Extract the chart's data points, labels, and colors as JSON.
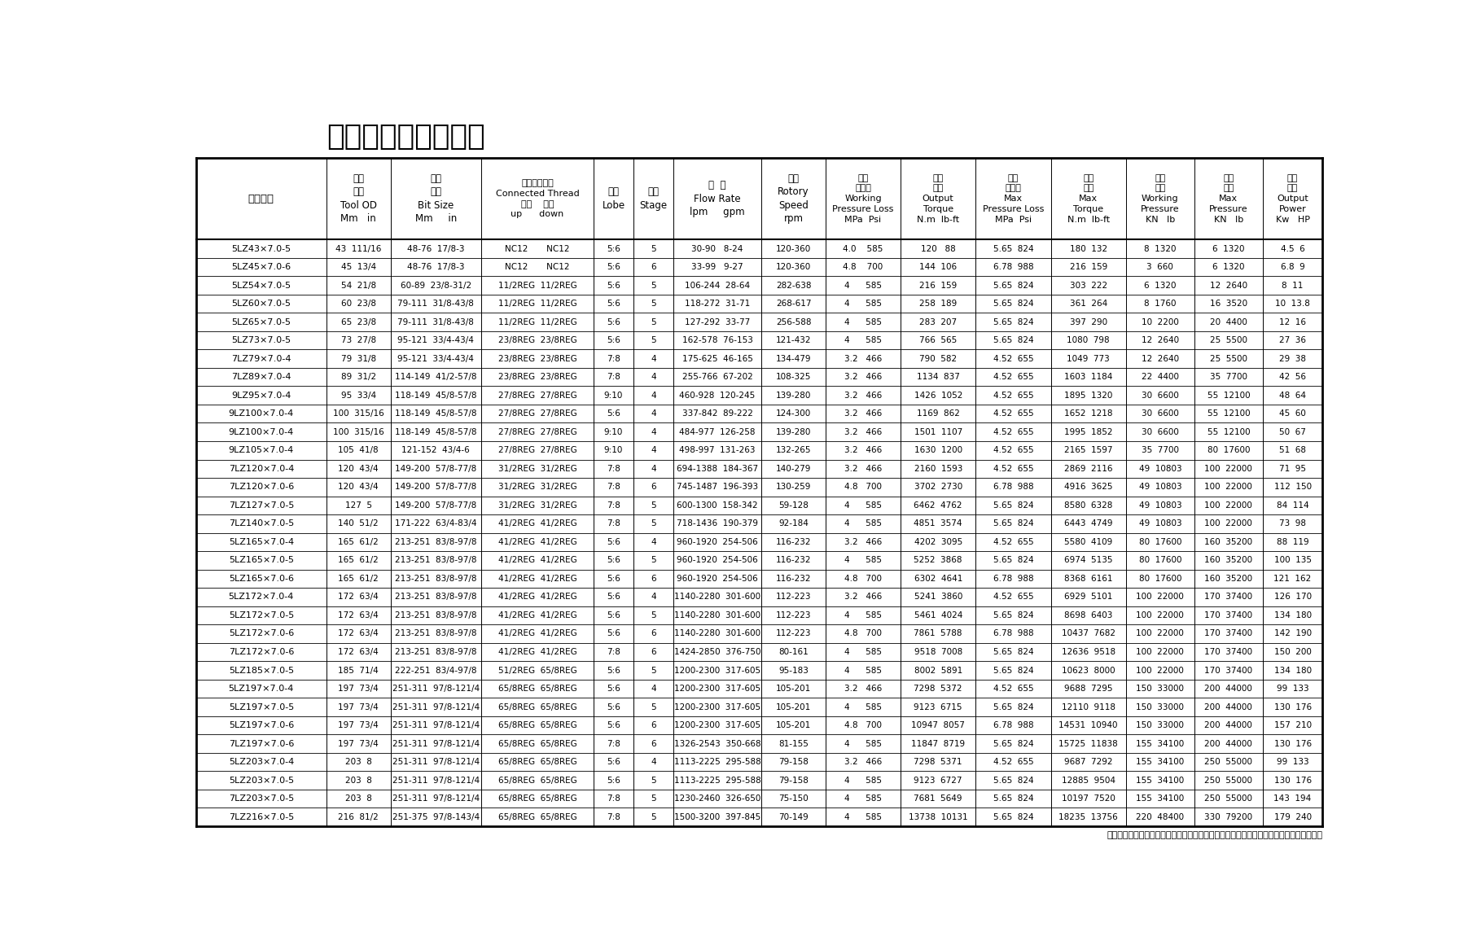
{
  "title": "螺杆钻具技术参数表",
  "footer": "注：此说明书最终解释权归盐城市荣嘉石油机械制造有限公司所有，如有变动以实物为准。",
  "col_props": [
    1.18,
    0.58,
    0.82,
    1.02,
    0.36,
    0.36,
    0.8,
    0.58,
    0.68,
    0.68,
    0.68,
    0.68,
    0.62,
    0.62,
    0.54
  ],
  "header_lines": [
    [
      "钻具型号",
      "外径\n尺寸\nTool OD\nMm   in",
      "钻头\n尺寸\nBit Size\nMm     in",
      "两端连接螺纹\nConnected Thread\n上端    下端\nup      down",
      "头数\nLobe",
      "级数\nStage",
      "排  量\nFlow Rate\nlpm     gpm",
      "转速\nRotory\nSpeed\nrpm",
      "工作\n压力降\nWorking\nPressure Loss\nMPa  Psi",
      "输出\n扭矩\nOutput\nTorque\nN.m  lb-ft",
      "最大\n压力降\nMax\nPressure Loss\nMPa  Psi",
      "最大\n扭矩\nMax\nTorque\nN.m  lb-ft",
      "工作\n钻压\nWorking\nPressure\nKN   lb",
      "最大\n钻压\nMax\nPressure\nKN   lb",
      "输出\n功率\nOutput\nPower\nKw   HP"
    ]
  ],
  "rows": [
    [
      "5LZ43×7.0-5",
      "43  111/16",
      "48-76  17/8-3",
      "NC12       NC12",
      "5:6",
      "5",
      "30-90   8-24",
      "120-360",
      "4.0    585",
      "120   88",
      "5.65  824",
      "180  132",
      "8  1320",
      "6  1320",
      "4.5  6"
    ],
    [
      "5LZ45×7.0-6",
      "45  13/4",
      "48-76  17/8-3",
      "NC12       NC12",
      "5:6",
      "6",
      "33-99   9-27",
      "120-360",
      "4.8    700",
      "144  106",
      "6.78  988",
      "216  159",
      "3  660",
      "6  1320",
      "6.8  9"
    ],
    [
      "5LZ54×7.0-5",
      "54  21/8",
      "60-89  23/8-31/2",
      "11/2REG  11/2REG",
      "5:6",
      "5",
      "106-244  28-64",
      "282-638",
      "4      585",
      "216  159",
      "5.65  824",
      "303  222",
      "6  1320",
      "12  2640",
      "8  11"
    ],
    [
      "5LZ60×7.0-5",
      "60  23/8",
      "79-111  31/8-43/8",
      "11/2REG  11/2REG",
      "5:6",
      "5",
      "118-272  31-71",
      "268-617",
      "4      585",
      "258  189",
      "5.65  824",
      "361  264",
      "8  1760",
      "16  3520",
      "10  13.8"
    ],
    [
      "5LZ65×7.0-5",
      "65  23/8",
      "79-111  31/8-43/8",
      "11/2REG  11/2REG",
      "5:6",
      "5",
      "127-292  33-77",
      "256-588",
      "4      585",
      "283  207",
      "5.65  824",
      "397  290",
      "10  2200",
      "20  4400",
      "12  16"
    ],
    [
      "5LZ73×7.0-5",
      "73  27/8",
      "95-121  33/4-43/4",
      "23/8REG  23/8REG",
      "5:6",
      "5",
      "162-578  76-153",
      "121-432",
      "4      585",
      "766  565",
      "5.65  824",
      "1080  798",
      "12  2640",
      "25  5500",
      "27  36"
    ],
    [
      "7LZ79×7.0-4",
      "79  31/8",
      "95-121  33/4-43/4",
      "23/8REG  23/8REG",
      "7:8",
      "4",
      "175-625  46-165",
      "134-479",
      "3.2   466",
      "790  582",
      "4.52  655",
      "1049  773",
      "12  2640",
      "25  5500",
      "29  38"
    ],
    [
      "7LZ89×7.0-4",
      "89  31/2",
      "114-149  41/2-57/8",
      "23/8REG  23/8REG",
      "7:8",
      "4",
      "255-766  67-202",
      "108-325",
      "3.2   466",
      "1134  837",
      "4.52  655",
      "1603  1184",
      "22  4400",
      "35  7700",
      "42  56"
    ],
    [
      "9LZ95×7.0-4",
      "95  33/4",
      "118-149  45/8-57/8",
      "27/8REG  27/8REG",
      "9:10",
      "4",
      "460-928  120-245",
      "139-280",
      "3.2   466",
      "1426  1052",
      "4.52  655",
      "1895  1320",
      "30  6600",
      "55  12100",
      "48  64"
    ],
    [
      "9LZ100×7.0-4",
      "100  315/16",
      "118-149  45/8-57/8",
      "27/8REG  27/8REG",
      "5:6",
      "4",
      "337-842  89-222",
      "124-300",
      "3.2   466",
      "1169  862",
      "4.52  655",
      "1652  1218",
      "30  6600",
      "55  12100",
      "45  60"
    ],
    [
      "9LZ100×7.0-4",
      "100  315/16",
      "118-149  45/8-57/8",
      "27/8REG  27/8REG",
      "9:10",
      "4",
      "484-977  126-258",
      "139-280",
      "3.2   466",
      "1501  1107",
      "4.52  655",
      "1995  1852",
      "30  6600",
      "55  12100",
      "50  67"
    ],
    [
      "9LZ105×7.0-4",
      "105  41/8",
      "121-152  43/4-6",
      "27/8REG  27/8REG",
      "9:10",
      "4",
      "498-997  131-263",
      "132-265",
      "3.2   466",
      "1630  1200",
      "4.52  655",
      "2165  1597",
      "35  7700",
      "80  17600",
      "51  68"
    ],
    [
      "7LZ120×7.0-4",
      "120  43/4",
      "149-200  57/8-77/8",
      "31/2REG  31/2REG",
      "7:8",
      "4",
      "694-1388  184-367",
      "140-279",
      "3.2   466",
      "2160  1593",
      "4.52  655",
      "2869  2116",
      "49  10803",
      "100  22000",
      "71  95"
    ],
    [
      "7LZ120×7.0-6",
      "120  43/4",
      "149-200  57/8-77/8",
      "31/2REG  31/2REG",
      "7:8",
      "6",
      "745-1487  196-393",
      "130-259",
      "4.8   700",
      "3702  2730",
      "6.78  988",
      "4916  3625",
      "49  10803",
      "100  22000",
      "112  150"
    ],
    [
      "7LZ127×7.0-5",
      "127  5",
      "149-200  57/8-77/8",
      "31/2REG  31/2REG",
      "7:8",
      "5",
      "600-1300  158-342",
      "59-128",
      "4      585",
      "6462  4762",
      "5.65  824",
      "8580  6328",
      "49  10803",
      "100  22000",
      "84  114"
    ],
    [
      "7LZ140×7.0-5",
      "140  51/2",
      "171-222  63/4-83/4",
      "41/2REG  41/2REG",
      "7:8",
      "5",
      "718-1436  190-379",
      "92-184",
      "4      585",
      "4851  3574",
      "5.65  824",
      "6443  4749",
      "49  10803",
      "100  22000",
      "73  98"
    ],
    [
      "5LZ165×7.0-4",
      "165  61/2",
      "213-251  83/8-97/8",
      "41/2REG  41/2REG",
      "5:6",
      "4",
      "960-1920  254-506",
      "116-232",
      "3.2   466",
      "4202  3095",
      "4.52  655",
      "5580  4109",
      "80  17600",
      "160  35200",
      "88  119"
    ],
    [
      "5LZ165×7.0-5",
      "165  61/2",
      "213-251  83/8-97/8",
      "41/2REG  41/2REG",
      "5:6",
      "5",
      "960-1920  254-506",
      "116-232",
      "4      585",
      "5252  3868",
      "5.65  824",
      "6974  5135",
      "80  17600",
      "160  35200",
      "100  135"
    ],
    [
      "5LZ165×7.0-6",
      "165  61/2",
      "213-251  83/8-97/8",
      "41/2REG  41/2REG",
      "5:6",
      "6",
      "960-1920  254-506",
      "116-232",
      "4.8   700",
      "6302  4641",
      "6.78  988",
      "8368  6161",
      "80  17600",
      "160  35200",
      "121  162"
    ],
    [
      "5LZ172×7.0-4",
      "172  63/4",
      "213-251  83/8-97/8",
      "41/2REG  41/2REG",
      "5:6",
      "4",
      "1140-2280  301-600",
      "112-223",
      "3.2   466",
      "5241  3860",
      "4.52  655",
      "6929  5101",
      "100  22000",
      "170  37400",
      "126  170"
    ],
    [
      "5LZ172×7.0-5",
      "172  63/4",
      "213-251  83/8-97/8",
      "41/2REG  41/2REG",
      "5:6",
      "5",
      "1140-2280  301-600",
      "112-223",
      "4      585",
      "5461  4024",
      "5.65  824",
      "8698  6403",
      "100  22000",
      "170  37400",
      "134  180"
    ],
    [
      "5LZ172×7.0-6",
      "172  63/4",
      "213-251  83/8-97/8",
      "41/2REG  41/2REG",
      "5:6",
      "6",
      "1140-2280  301-600",
      "112-223",
      "4.8   700",
      "7861  5788",
      "6.78  988",
      "10437  7682",
      "100  22000",
      "170  37400",
      "142  190"
    ],
    [
      "7LZ172×7.0-6",
      "172  63/4",
      "213-251  83/8-97/8",
      "41/2REG  41/2REG",
      "7:8",
      "6",
      "1424-2850  376-750",
      "80-161",
      "4      585",
      "9518  7008",
      "5.65  824",
      "12636  9518",
      "100  22000",
      "170  37400",
      "150  200"
    ],
    [
      "5LZ185×7.0-5",
      "185  71/4",
      "222-251  83/4-97/8",
      "51/2REG  65/8REG",
      "5:6",
      "5",
      "1200-2300  317-605",
      "95-183",
      "4      585",
      "8002  5891",
      "5.65  824",
      "10623  8000",
      "100  22000",
      "170  37400",
      "134  180"
    ],
    [
      "5LZ197×7.0-4",
      "197  73/4",
      "251-311  97/8-121/4",
      "65/8REG  65/8REG",
      "5:6",
      "4",
      "1200-2300  317-605",
      "105-201",
      "3.2   466",
      "7298  5372",
      "4.52  655",
      "9688  7295",
      "150  33000",
      "200  44000",
      "99  133"
    ],
    [
      "5LZ197×7.0-5",
      "197  73/4",
      "251-311  97/8-121/4",
      "65/8REG  65/8REG",
      "5:6",
      "5",
      "1200-2300  317-605",
      "105-201",
      "4      585",
      "9123  6715",
      "5.65  824",
      "12110  9118",
      "150  33000",
      "200  44000",
      "130  176"
    ],
    [
      "5LZ197×7.0-6",
      "197  73/4",
      "251-311  97/8-121/4",
      "65/8REG  65/8REG",
      "5:6",
      "6",
      "1200-2300  317-605",
      "105-201",
      "4.8   700",
      "10947  8057",
      "6.78  988",
      "14531  10940",
      "150  33000",
      "200  44000",
      "157  210"
    ],
    [
      "7LZ197×7.0-6",
      "197  73/4",
      "251-311  97/8-121/4",
      "65/8REG  65/8REG",
      "7:8",
      "6",
      "1326-2543  350-668",
      "81-155",
      "4      585",
      "11847  8719",
      "5.65  824",
      "15725  11838",
      "155  34100",
      "200  44000",
      "130  176"
    ],
    [
      "5LZ203×7.0-4",
      "203  8",
      "251-311  97/8-121/4",
      "65/8REG  65/8REG",
      "5:6",
      "4",
      "1113-2225  295-588",
      "79-158",
      "3.2   466",
      "7298  5371",
      "4.52  655",
      "9687  7292",
      "155  34100",
      "250  55000",
      "99  133"
    ],
    [
      "5LZ203×7.0-5",
      "203  8",
      "251-311  97/8-121/4",
      "65/8REG  65/8REG",
      "5:6",
      "5",
      "1113-2225  295-588",
      "79-158",
      "4      585",
      "9123  6727",
      "5.65  824",
      "12885  9504",
      "155  34100",
      "250  55000",
      "130  176"
    ],
    [
      "7LZ203×7.0-5",
      "203  8",
      "251-311  97/8-121/4",
      "65/8REG  65/8REG",
      "7:8",
      "5",
      "1230-2460  326-650",
      "75-150",
      "4      585",
      "7681  5649",
      "5.65  824",
      "10197  7520",
      "155  34100",
      "250  55000",
      "143  194"
    ],
    [
      "7LZ216×7.0-5",
      "216  81/2",
      "251-375  97/8-143/4",
      "65/8REG  65/8REG",
      "7:8",
      "5",
      "1500-3200  397-845",
      "70-149",
      "4      585",
      "13738  10131",
      "5.65  824",
      "18235  13756",
      "220  48400",
      "330  79200",
      "179  240"
    ]
  ]
}
